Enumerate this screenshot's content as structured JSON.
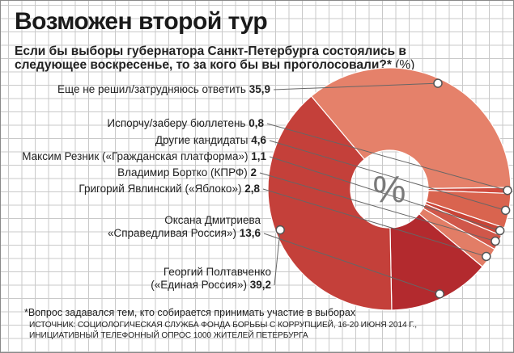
{
  "title": "Возможен второй тур",
  "subtitle": "Если бы выборы губернатора Санкт-Петербурга состоялись в следующее воскресенье, то за кого бы вы проголосовали?*",
  "units": "(%)",
  "center_label": "%",
  "footnote": "*Вопрос задавался тем, кто собирается принимать участие в выборах",
  "source_line1": "ИСТОЧНИК: СОЦИОЛОГИЧЕСКАЯ СЛУЖБА ФОНДА БОРЬБЫ С КОРРУПЦИЕЙ, 16-20 ИЮНЯ 2014 Г.,",
  "source_line2": "ИНИЦИАТИВНЫЙ ТЕЛЕФОННЫЙ ОПРОС 1000 ЖИТЕЛЕЙ ПЕТЕРБУРГА",
  "chart_data": {
    "type": "pie",
    "donut": true,
    "unit": "%",
    "slices": [
      {
        "label": "Еще не решил/затрудняюсь ответить",
        "value": 35.9,
        "color": "#e5816a"
      },
      {
        "label": "Испорчу/заберу бюллетень",
        "value": 0.8,
        "color": "#cf4b3f"
      },
      {
        "label": "Другие кандидаты",
        "value": 4.6,
        "color": "#d9644f"
      },
      {
        "label": "Максим Резник («Гражданская платформа»)",
        "value": 1.1,
        "color": "#c94437"
      },
      {
        "label": "Владимир Бортко (КПРФ)",
        "value": 2,
        "color": "#d0574a"
      },
      {
        "label": "Григорий Явлинский («Яблоко»)",
        "value": 2.8,
        "color": "#e27d66"
      },
      {
        "label": "Оксана Дмитриева («Справедливая Россия»)",
        "value": 13.6,
        "color": "#b32a2e"
      },
      {
        "label": "Георгий Полтавченко («Единая Россия»)",
        "value": 39.2,
        "color": "#c4403a"
      }
    ]
  },
  "labels": [
    {
      "text": "Еще не решил/затрудняюсь ответить",
      "value": "35,9"
    },
    {
      "text": "Испорчу/заберу бюллетень",
      "value": "0,8"
    },
    {
      "text": "Другие кандидаты",
      "value": "4,6"
    },
    {
      "text": "Максим Резник («Гражданская платформа»)",
      "value": "1,1"
    },
    {
      "text": "Владимир Бортко (КПРФ)",
      "value": "2"
    },
    {
      "text": "Григорий Явлинский («Яблоко»)",
      "value": "2,8"
    },
    {
      "line1": "Оксана Дмитриева",
      "text": "«Справедливая Россия»)",
      "value": "13,6"
    },
    {
      "line1": "Георгий Полтавченко",
      "text": "(«Единая Россия»)",
      "value": "39,2"
    }
  ]
}
